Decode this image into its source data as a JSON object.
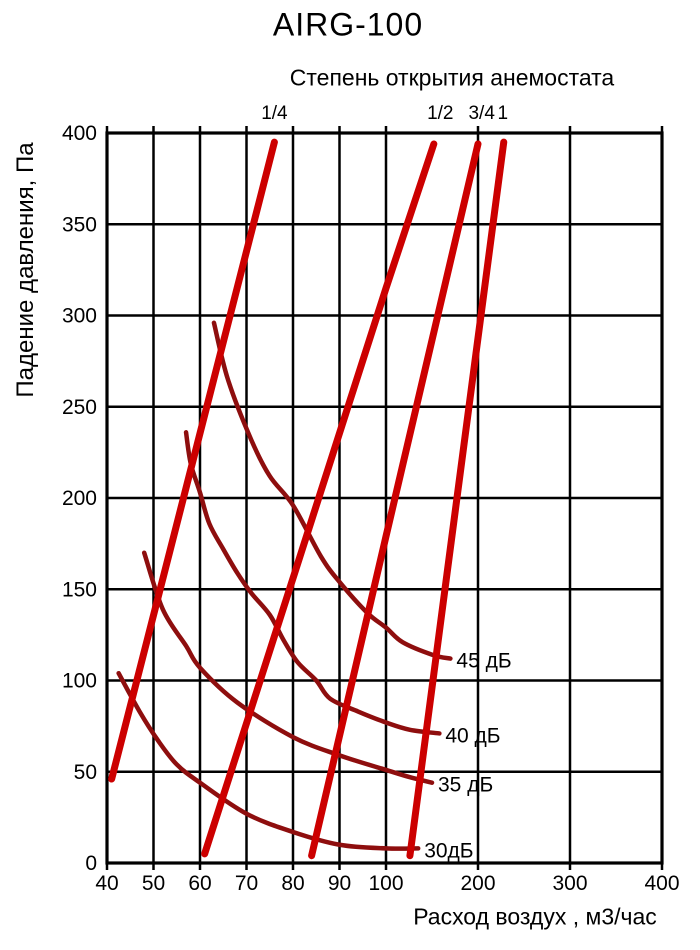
{
  "title": "AIRG-100",
  "subtitle": "Степень открытия анемостата",
  "chart_data": {
    "type": "line",
    "title": "AIRG-100",
    "subtitle": "Степень открытия анемостата",
    "xlabel": "Расход воздух , м3/час",
    "ylabel": "Падение давления, Па",
    "xlim": [
      40,
      400
    ],
    "ylim": [
      0,
      400
    ],
    "x_ticks": [
      40,
      50,
      60,
      70,
      80,
      90,
      100,
      200,
      300,
      400
    ],
    "y_ticks": [
      0,
      50,
      100,
      150,
      200,
      250,
      300,
      350,
      400
    ],
    "grid": true,
    "x_scale": "piecewise-linear (log-like): equal spacing per 10 units from 40 to 100, equal spacing per 100 units from 100 to 400",
    "legend_position": "none",
    "colors": {
      "opening_line": "#cc0000",
      "noise_curve": "#8e0e0e",
      "grid": "#000000",
      "text": "#000000",
      "background": "#ffffff"
    },
    "opening_series": [
      {
        "label": "1/4",
        "label_q": 76,
        "points": [
          [
            41,
            46
          ],
          [
            76,
            395
          ]
        ]
      },
      {
        "label": "1/2",
        "label_q": 159,
        "points": [
          [
            61,
            5
          ],
          [
            100,
            315
          ],
          [
            152,
            394
          ]
        ]
      },
      {
        "label": "3/4",
        "label_q": 204,
        "points": [
          [
            84,
            4
          ],
          [
            100,
            179
          ],
          [
            200,
            394
          ]
        ]
      },
      {
        "label": "1",
        "label_q": 227,
        "points": [
          [
            126,
            4
          ],
          [
            228,
            395
          ]
        ]
      }
    ],
    "noise_series": [
      {
        "label": "45 дБ",
        "points": [
          [
            63,
            296
          ],
          [
            66,
            265
          ],
          [
            71,
            232
          ],
          [
            75,
            212
          ],
          [
            80,
            196
          ],
          [
            86,
            168
          ],
          [
            90,
            154
          ],
          [
            96,
            137
          ],
          [
            100,
            129
          ],
          [
            118,
            121
          ],
          [
            151,
            114
          ],
          [
            170,
            112
          ]
        ]
      },
      {
        "label": "40 дБ",
        "points": [
          [
            57,
            236
          ],
          [
            58,
            219
          ],
          [
            60,
            203
          ],
          [
            62,
            186
          ],
          [
            65,
            172
          ],
          [
            68,
            159
          ],
          [
            71,
            148
          ],
          [
            75,
            136
          ],
          [
            78,
            122
          ],
          [
            81,
            110
          ],
          [
            85,
            100
          ],
          [
            88,
            90
          ],
          [
            94,
            83
          ],
          [
            100,
            77
          ],
          [
            126,
            73
          ],
          [
            158,
            71
          ]
        ]
      },
      {
        "label": "35 дБ",
        "points": [
          [
            48,
            170
          ],
          [
            52,
            139
          ],
          [
            57,
            119
          ],
          [
            60,
            107
          ],
          [
            68,
            88
          ],
          [
            80,
            69
          ],
          [
            90,
            59
          ],
          [
            100,
            51
          ],
          [
            126,
            47
          ],
          [
            150,
            44
          ]
        ]
      },
      {
        "label": "30дБ",
        "points": [
          [
            42.5,
            104
          ],
          [
            47,
            83
          ],
          [
            51,
            67
          ],
          [
            55,
            54
          ],
          [
            60,
            44
          ],
          [
            70,
            27
          ],
          [
            80,
            17
          ],
          [
            90,
            10
          ],
          [
            100,
            8
          ],
          [
            135,
            8
          ]
        ]
      }
    ]
  }
}
